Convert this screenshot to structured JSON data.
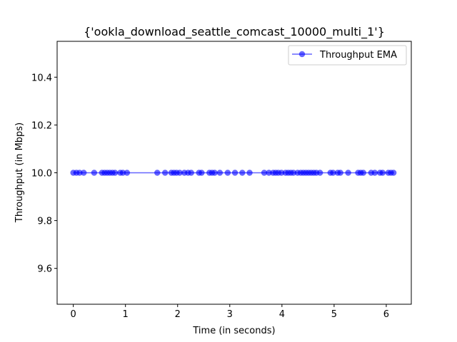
{
  "chart_data": {
    "type": "line",
    "title": "{'ookla_download_seattle_comcast_10000_multi_1'}",
    "xlabel": "Time (in seconds)",
    "ylabel": "Throughput (in Mbps)",
    "xlim": [
      -0.31,
      6.48
    ],
    "ylim": [
      9.45,
      10.55
    ],
    "x_ticks": [
      0,
      1,
      2,
      3,
      4,
      5,
      6
    ],
    "y_ticks": [
      9.6,
      9.8,
      10.0,
      10.2,
      10.4
    ],
    "x_tick_labels": [
      "0",
      "1",
      "2",
      "3",
      "4",
      "5",
      "6"
    ],
    "y_tick_labels": [
      "9.6",
      "9.8",
      "10.0",
      "10.2",
      "10.4"
    ],
    "grid": false,
    "legend_position": "upper right",
    "color": "#0000ff",
    "series": [
      {
        "name": "Throughput EMA",
        "marker": "circle",
        "x": [
          0.0,
          0.06,
          0.12,
          0.2,
          0.4,
          0.55,
          0.6,
          0.65,
          0.7,
          0.75,
          0.8,
          0.9,
          0.95,
          1.03,
          1.61,
          1.76,
          1.88,
          1.93,
          1.98,
          2.04,
          2.13,
          2.2,
          2.26,
          2.41,
          2.46,
          2.61,
          2.66,
          2.71,
          2.81,
          2.96,
          3.1,
          3.24,
          3.38,
          3.66,
          3.75,
          3.83,
          3.88,
          3.93,
          3.99,
          4.07,
          4.12,
          4.17,
          4.22,
          4.3,
          4.36,
          4.41,
          4.46,
          4.51,
          4.56,
          4.61,
          4.66,
          4.73,
          4.93,
          4.98,
          5.07,
          5.12,
          5.27,
          5.46,
          5.51,
          5.56,
          5.71,
          5.78,
          5.88,
          5.93,
          6.04,
          6.09,
          6.14
        ],
        "y": [
          10.0,
          10.0,
          10.0,
          10.0,
          10.0,
          10.0,
          10.0,
          10.0,
          10.0,
          10.0,
          10.0,
          10.0,
          10.0,
          10.0,
          10.0,
          10.0,
          10.0,
          10.0,
          10.0,
          10.0,
          10.0,
          10.0,
          10.0,
          10.0,
          10.0,
          10.0,
          10.0,
          10.0,
          10.0,
          10.0,
          10.0,
          10.0,
          10.0,
          10.0,
          10.0,
          10.0,
          10.0,
          10.0,
          10.0,
          10.0,
          10.0,
          10.0,
          10.0,
          10.0,
          10.0,
          10.0,
          10.0,
          10.0,
          10.0,
          10.0,
          10.0,
          10.0,
          10.0,
          10.0,
          10.0,
          10.0,
          10.0,
          10.0,
          10.0,
          10.0,
          10.0,
          10.0,
          10.0,
          10.0,
          10.0,
          10.0,
          10.0
        ]
      }
    ]
  }
}
